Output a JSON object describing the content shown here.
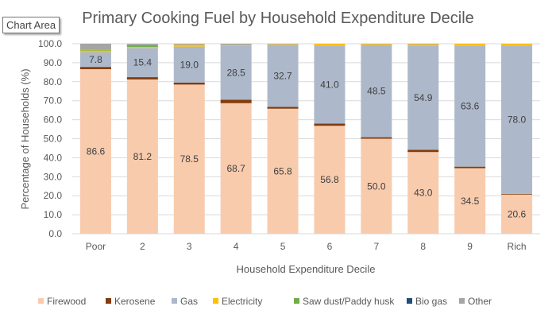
{
  "tooltip": "Chart Area",
  "chart_data": {
    "type": "bar",
    "stacked": true,
    "title": "Primary Cooking Fuel by Household Expenditure Decile",
    "xlabel": "Household Expenditure Decile",
    "ylabel": "Percentage of Households (%)",
    "ylim": [
      0,
      100
    ],
    "yticks": [
      "0.0",
      "10.0",
      "20.0",
      "30.0",
      "40.0",
      "50.0",
      "60.0",
      "70.0",
      "80.0",
      "90.0",
      "100.0"
    ],
    "grid": true,
    "legend_position": "bottom",
    "categories": [
      "Poor",
      "2",
      "3",
      "4",
      "5",
      "6",
      "7",
      "8",
      "9",
      "Rich"
    ],
    "series": [
      {
        "name": "Firewood",
        "color": "#F8CBAD",
        "values": [
          86.6,
          81.2,
          78.5,
          68.7,
          65.8,
          56.8,
          50.0,
          43.0,
          34.5,
          20.6
        ],
        "labels": [
          "86.6",
          "81.2",
          "78.5",
          "68.7",
          "65.8",
          "56.8",
          "50.0",
          "43.0",
          "34.5",
          "20.6"
        ]
      },
      {
        "name": "Kerosene",
        "color": "#843C0C",
        "values": [
          1.2,
          1.2,
          1.0,
          1.8,
          1.0,
          1.2,
          0.8,
          1.2,
          0.8,
          0.4
        ]
      },
      {
        "name": "Gas",
        "color": "#ADB9CA",
        "values": [
          7.8,
          15.4,
          19.0,
          28.5,
          32.7,
          41.0,
          48.5,
          54.9,
          63.6,
          78.0
        ],
        "labels": [
          "7.8",
          "15.4",
          "19.0",
          "28.5",
          "32.7",
          "41.0",
          "48.5",
          "54.9",
          "63.6",
          "78.0"
        ]
      },
      {
        "name": "Electricity",
        "color": "#FFC000",
        "values": [
          0.8,
          0.5,
          1.0,
          0.3,
          0.3,
          1.0,
          0.5,
          0.6,
          1.1,
          1.0
        ]
      },
      {
        "name": "Saw dust/Paddy husk",
        "color": "#70AD47",
        "values": [
          0.3,
          1.0,
          0,
          0,
          0,
          0,
          0,
          0,
          0,
          0
        ]
      },
      {
        "name": "Bio gas",
        "color": "#1F4E79",
        "values": [
          0,
          0,
          0,
          0,
          0,
          0,
          0,
          0,
          0,
          0
        ]
      },
      {
        "name": "Other",
        "color": "#A5A5A5",
        "values": [
          3.3,
          0.7,
          0.5,
          0.7,
          0.2,
          0,
          0.2,
          0.3,
          0,
          0
        ]
      }
    ]
  }
}
